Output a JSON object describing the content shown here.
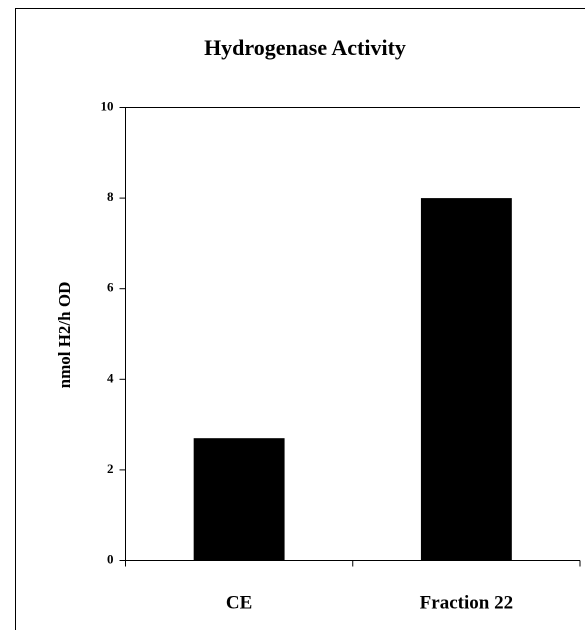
{
  "chart_data": {
    "type": "bar",
    "title": "Hydrogenase Activity",
    "y_label": "nmol H2/h OD",
    "categories": [
      "CE",
      "Fraction 22"
    ],
    "values": [
      2.7,
      8.0
    ],
    "color": "#000000",
    "ylim": [
      0,
      10
    ],
    "yticks": [
      0,
      2,
      4,
      6,
      8,
      10
    ],
    "grid": false
  }
}
